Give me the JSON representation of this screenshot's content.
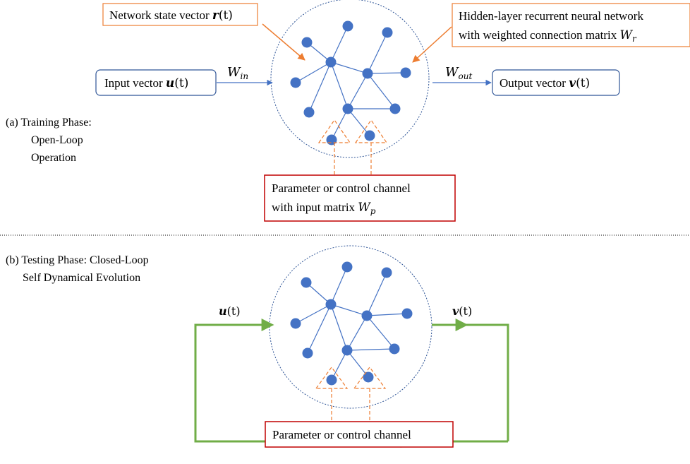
{
  "colors": {
    "node": "#4472c4",
    "edge": "#4472c4",
    "circle": "#2f5597",
    "callout_orange": "#ed7d31",
    "param_red": "#c00000",
    "loop_green": "#70ad47",
    "io_border": "#2f5597",
    "separator": "#000000"
  },
  "training": {
    "phase_label": [
      "(a)  Training Phase:",
      "Open-Loop",
      "Operation"
    ],
    "state_callout": {
      "text": "Network state vector ",
      "symbol": "r",
      "arg": "(t)"
    },
    "hidden_callout": {
      "line1": "Hidden-layer recurrent neural network",
      "line2": "with weighted connection matrix ",
      "symbol": "W",
      "sub": "r"
    },
    "input_box": {
      "text": "Input vector ",
      "symbol": "u",
      "arg": "(t)"
    },
    "output_box": {
      "text": "Output vector ",
      "symbol": "v",
      "arg": "(t)"
    },
    "w_in": {
      "symbol": "W",
      "sub": "in"
    },
    "w_out": {
      "symbol": "W",
      "sub": "out"
    },
    "param_box": {
      "line1": "Parameter or control channel",
      "line2": "with input matrix ",
      "symbol": "W",
      "sub": "p"
    }
  },
  "testing": {
    "phase_label": [
      "(b) Testing Phase: Closed-Loop",
      "Self Dynamical Evolution"
    ],
    "u_label": {
      "symbol": "u",
      "arg": "(t)"
    },
    "v_label": {
      "symbol": "v",
      "arg": "(t)"
    },
    "param_box": {
      "text": "Parameter or control channel"
    }
  }
}
